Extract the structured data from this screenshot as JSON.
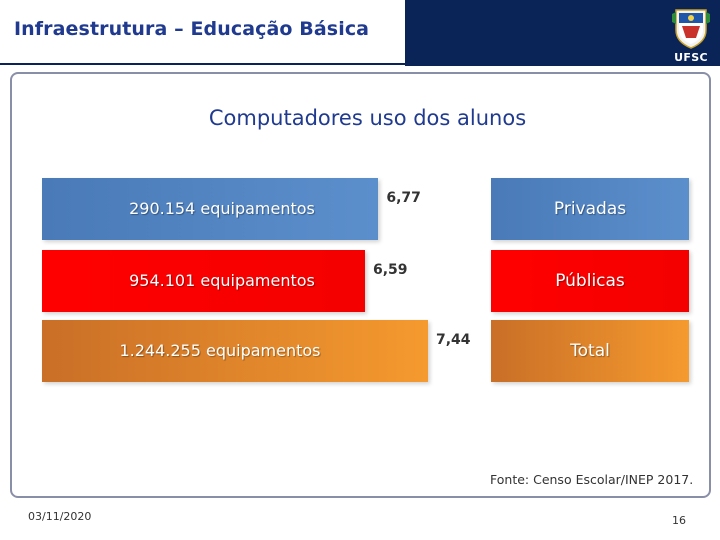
{
  "slide": {
    "title": "Infraestrutura – Educação Básica",
    "logo_text": "UFSC"
  },
  "chart_data": {
    "type": "bar",
    "title": "Computadores uso dos alunos",
    "categories": [
      "Privadas",
      "Públicas",
      "Total"
    ],
    "series": [
      {
        "values": [
          6.77,
          6.59,
          7.44
        ]
      }
    ],
    "value_labels": [
      "6,77",
      "6,59",
      "7,44"
    ],
    "bar_labels": [
      "290.154 equipamentos",
      "954.101 equipamentos",
      "1.244.255 equipamentos"
    ],
    "colors": [
      "#4f81bd",
      "#ff0000",
      "#e07b22"
    ],
    "orientation": "horizontal"
  },
  "source": "Fonte: Censo Escolar/INEP 2017.",
  "footer": {
    "date": "03/11/2020",
    "page": "16"
  }
}
